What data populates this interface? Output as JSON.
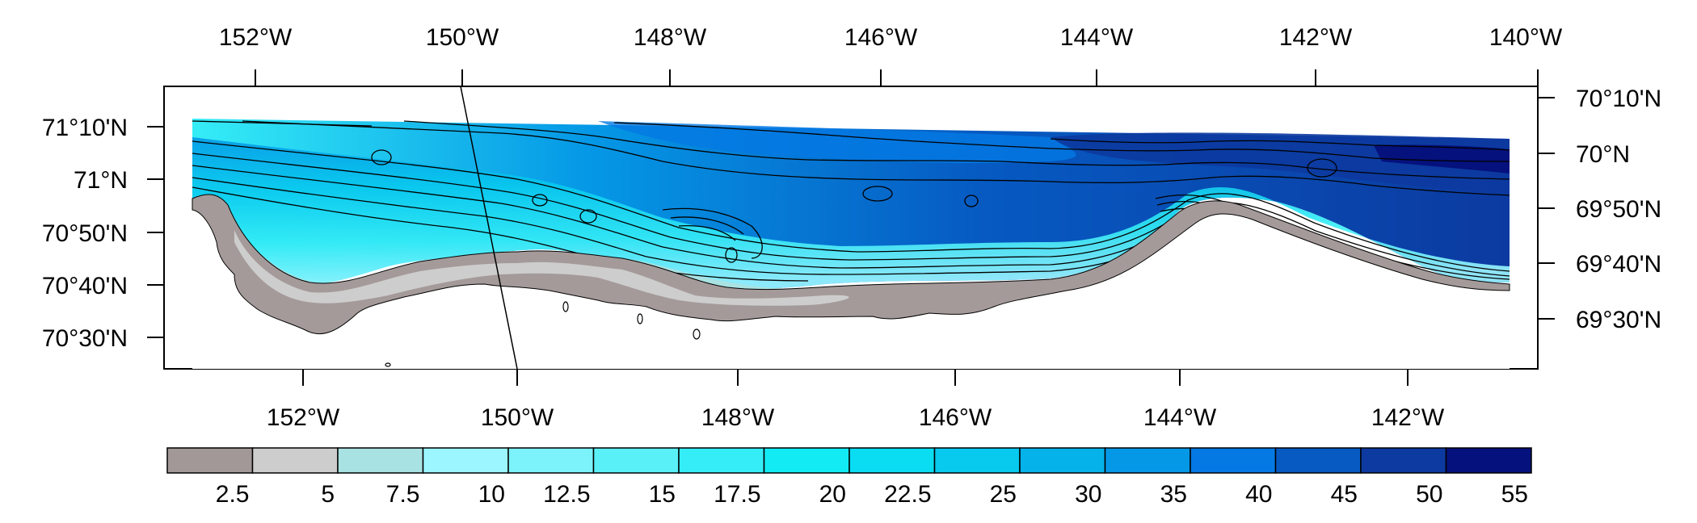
{
  "map": {
    "top_axis_labels": [
      "152°W",
      "150°W",
      "148°W",
      "146°W",
      "144°W",
      "142°W",
      "140°W"
    ],
    "bottom_axis_labels": [
      "152°W",
      "150°W",
      "148°W",
      "146°W",
      "144°W",
      "142°W"
    ],
    "left_axis_labels": [
      "71°10'N",
      "71°N",
      "70°50'N",
      "70°40'N",
      "70°30'N"
    ],
    "right_axis_labels": [
      "70°10'N",
      "70°N",
      "69°50'N",
      "69°40'N",
      "69°30'N"
    ],
    "land_color": "#a59a9a",
    "contour_color": "#000000",
    "field": "depth-like contoured shelf field along northern coast"
  },
  "colorbar": {
    "tick_labels": [
      "2.5",
      "5",
      "7.5",
      "10",
      "12.5",
      "15",
      "17.5",
      "20",
      "22.5",
      "25",
      "30",
      "35",
      "40",
      "45",
      "50",
      "55"
    ],
    "colors": [
      "#a39898",
      "#cdcdcd",
      "#a9e2e2",
      "#9cf6ff",
      "#7cf2fa",
      "#5af0f8",
      "#35edf6",
      "#12ebf4",
      "#0adcf2",
      "#08c9ee",
      "#05b2ea",
      "#0598e6",
      "#0479e4",
      "#065ac2",
      "#0c3aa0",
      "#05117c"
    ]
  }
}
